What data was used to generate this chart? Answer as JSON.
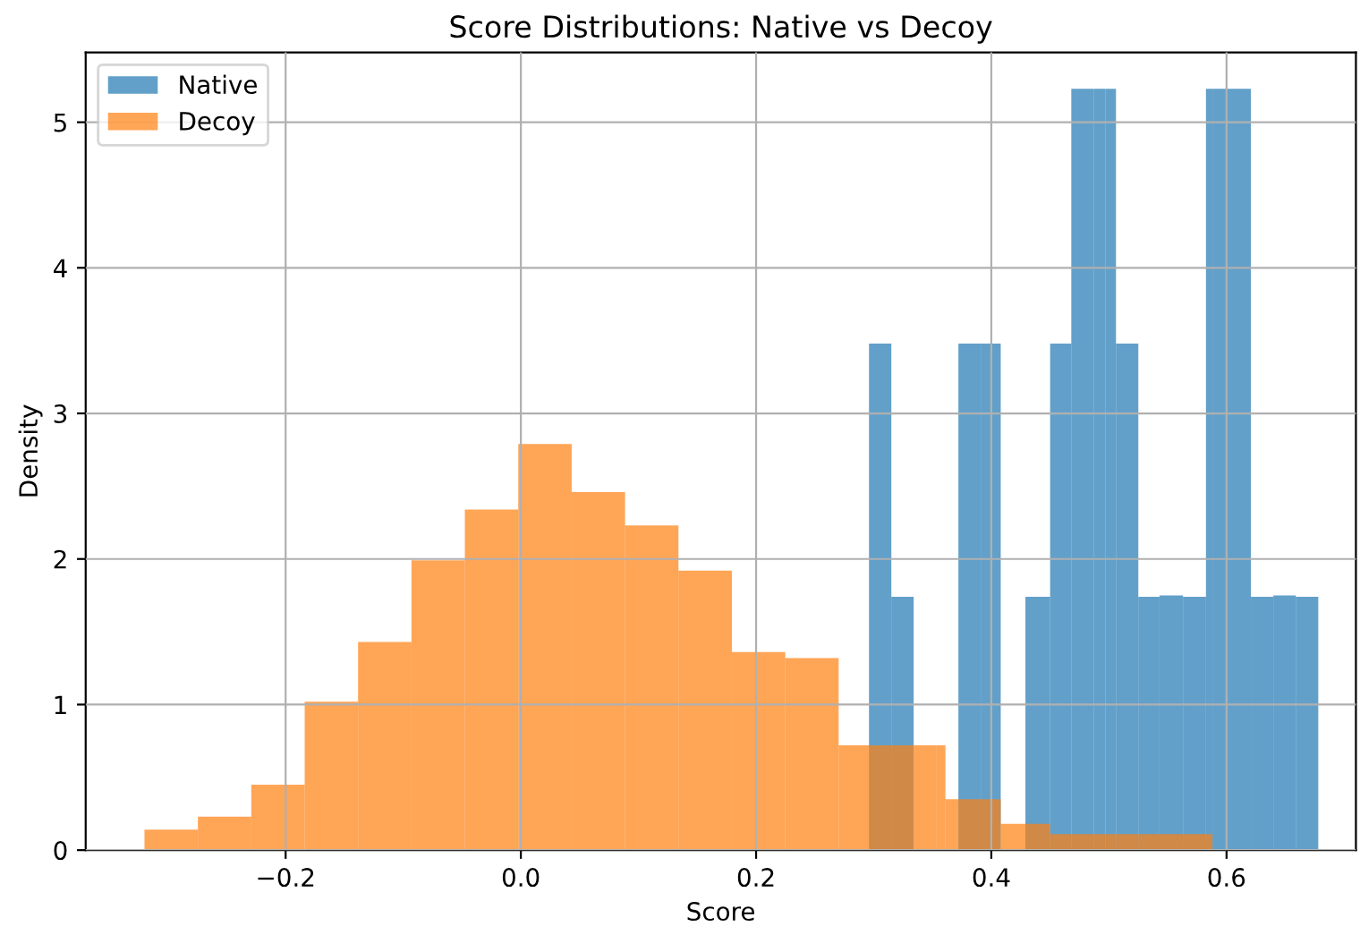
{
  "chart_data": {
    "type": "histogram",
    "title": "Score Distributions: Native vs Decoy",
    "xlabel": "Score",
    "ylabel": "Density",
    "bins": [
      -0.32,
      -0.2746,
      -0.2292,
      -0.1838,
      -0.1384,
      -0.093,
      -0.0476,
      -0.0022,
      0.0432,
      0.0886,
      0.134,
      0.1794,
      0.2248,
      0.2702,
      0.296,
      0.315,
      0.334,
      0.353,
      0.361,
      0.372,
      0.391,
      0.408,
      0.429,
      0.45,
      0.468,
      0.487,
      0.497,
      0.506,
      0.525,
      0.543,
      0.563,
      0.5825,
      0.588,
      0.6016,
      0.6207,
      0.6398,
      0.6589,
      0.678
    ],
    "series": [
      {
        "name": "Native",
        "color": "#1f77b4",
        "values": [
          null,
          null,
          null,
          null,
          null,
          null,
          null,
          null,
          null,
          null,
          null,
          null,
          null,
          null,
          3.48,
          1.74,
          0,
          0,
          0,
          3.48,
          3.48,
          0,
          1.74,
          3.48,
          5.23,
          5.23,
          5.23,
          3.48,
          1.74,
          1.75,
          1.74,
          5.23,
          5.23,
          5.23,
          1.74,
          1.75,
          1.74
        ]
      },
      {
        "name": "Decoy",
        "color": "#ff7f0e",
        "values": [
          0.14,
          0.23,
          0.45,
          1.02,
          1.43,
          1.99,
          2.34,
          2.79,
          2.46,
          2.23,
          1.92,
          1.36,
          1.32,
          0.72,
          0.72,
          0.72,
          0.72,
          0.72,
          0.35,
          0.35,
          0.35,
          0.18,
          0.18,
          0.11,
          0.11,
          0.11,
          0.11,
          0.11,
          0.11,
          0.11,
          0.11,
          0.11,
          null,
          null,
          null,
          null,
          null
        ]
      }
    ],
    "xlim": [
      -0.37,
      0.71
    ],
    "ylim": [
      0,
      5.48
    ],
    "xticks": [
      {
        "value": -0.2,
        "label": "−0.2"
      },
      {
        "value": 0.0,
        "label": "0.0"
      },
      {
        "value": 0.2,
        "label": "0.2"
      },
      {
        "value": 0.4,
        "label": "0.4"
      },
      {
        "value": 0.6,
        "label": "0.6"
      }
    ],
    "yticks": [
      0,
      1,
      2,
      3,
      4,
      5
    ],
    "grid": true,
    "legend": "top left"
  }
}
